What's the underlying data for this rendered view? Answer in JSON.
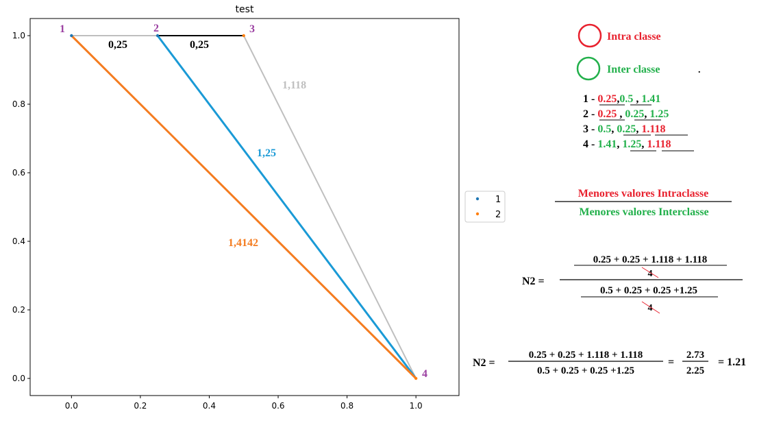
{
  "chart_data": {
    "type": "scatter",
    "title": "test",
    "xlim": [
      -0.12,
      1.125
    ],
    "ylim": [
      -0.05,
      1.05
    ],
    "x_ticks": [
      "0.0",
      "0.2",
      "0.4",
      "0.6",
      "0.8",
      "1.0"
    ],
    "y_ticks": [
      "0.0",
      "0.2",
      "0.4",
      "0.6",
      "0.8",
      "1.0"
    ],
    "legend": {
      "placement": "outside-right",
      "entries": [
        "1",
        "2"
      ]
    },
    "series": [
      {
        "name": "1",
        "color": "#1f77b4",
        "points": [
          [
            0.0,
            1.0
          ],
          [
            0.25,
            1.0
          ]
        ]
      },
      {
        "name": "2",
        "color": "#ff7f0e",
        "points": [
          [
            0.5,
            1.0
          ],
          [
            1.0,
            0.0
          ]
        ]
      }
    ],
    "point_labels": [
      {
        "text": "1",
        "x": 0.0,
        "y": 1.0
      },
      {
        "text": "2",
        "x": 0.25,
        "y": 1.0
      },
      {
        "text": "3",
        "x": 0.5,
        "y": 1.0
      },
      {
        "text": "4",
        "x": 1.0,
        "y": 0.0
      }
    ],
    "segments": [
      {
        "from": [
          0.0,
          1.0
        ],
        "to": [
          0.25,
          1.0
        ],
        "color": "#bfbfbf",
        "label": "0,25"
      },
      {
        "from": [
          0.25,
          1.0
        ],
        "to": [
          0.5,
          1.0
        ],
        "color": "#000000",
        "label": "0,25"
      },
      {
        "from": [
          0.5,
          1.0
        ],
        "to": [
          1.0,
          0.0
        ],
        "color": "#bfbfbf",
        "label": "1,118"
      },
      {
        "from": [
          0.25,
          1.0
        ],
        "to": [
          1.0,
          0.0
        ],
        "color": "#1a9ad6",
        "label": "1,25"
      },
      {
        "from": [
          0.0,
          1.0
        ],
        "to": [
          1.0,
          0.0
        ],
        "color": "#f47c20",
        "label": "1,4142"
      }
    ]
  },
  "colors": {
    "red": "#e8212e",
    "green": "#22b04b",
    "purple": "#9b3fa1",
    "cyan": "#1a9ad6",
    "orange": "#f47c20",
    "gray": "#bfbfbf"
  },
  "key": {
    "intra_label": "Intra classe",
    "inter_label": "Inter classe",
    "dot": "."
  },
  "distances": [
    {
      "num": "1",
      "dash": " - ",
      "v1": "0.25",
      "s1": ",",
      "v2": "0.5",
      "s2": " , ",
      "v3": "1.41"
    },
    {
      "num": "2",
      "dash": " - ",
      "v1": "0.25",
      "s1": " , ",
      "v2": "0.25",
      "s2": ", ",
      "v3": "1.25"
    },
    {
      "num": "3",
      "dash": " - ",
      "v1": "0.5",
      "s1": ", ",
      "v2": "0.25",
      "s2": ", ",
      "v3": "1.118"
    },
    {
      "num": "4",
      "dash": " - ",
      "v1": "1.41",
      "s1": ", ",
      "v2": "1.25",
      "s2": ", ",
      "v3": "1.118"
    }
  ],
  "ratio": {
    "numerator": "Menores valores Intraclasse",
    "denominator": "Menores valores Interclasse"
  },
  "formula1": {
    "lhs": "N2 =",
    "num": "0.25 + 0.25 + 1.118 + 1.118",
    "num_div": "4",
    "den": "0.5 + 0.25 + 0.25 +1.25",
    "den_div": "4"
  },
  "formula2": {
    "lhs": "N2 =",
    "num": "0.25 + 0.25 + 1.118 + 1.118",
    "den": "0.5 + 0.25 + 0.25 +1.25",
    "eq": "=",
    "frac_num": "2.73",
    "frac_den": "2.25",
    "result": "= 1.21"
  }
}
